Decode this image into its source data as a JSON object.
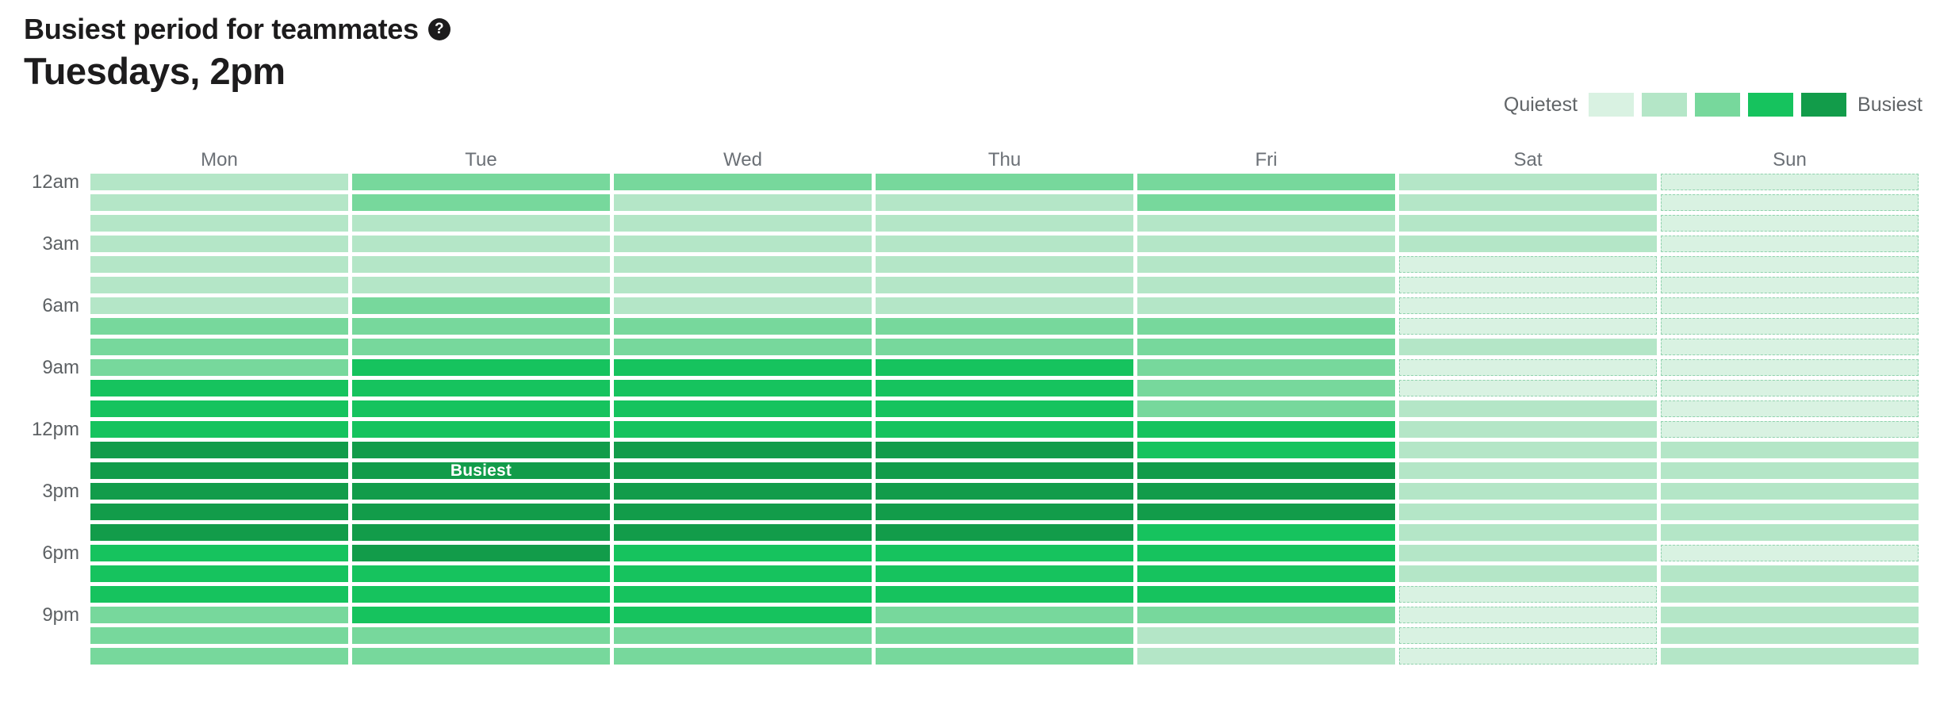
{
  "header": {
    "title": "Busiest period for teammates",
    "help_icon_glyph": "?",
    "subtitle": "Tuesdays, 2pm"
  },
  "legend": {
    "min_label": "Quietest",
    "max_label": "Busiest",
    "level_colors": [
      "#d9f2e2",
      "#b4e6c7",
      "#77d89c",
      "#16c35e",
      "#129c4a"
    ],
    "level1_border": "#54b983"
  },
  "chart_data": {
    "type": "heatmap",
    "title": "Busiest period for teammates",
    "subtitle": "Tuesdays, 2pm",
    "x_categories": [
      "Mon",
      "Tue",
      "Wed",
      "Thu",
      "Fri",
      "Sat",
      "Sun"
    ],
    "y_categories": [
      "12am",
      "1am",
      "2am",
      "3am",
      "4am",
      "5am",
      "6am",
      "7am",
      "8am",
      "9am",
      "10am",
      "11am",
      "12pm",
      "1pm",
      "2pm",
      "3pm",
      "4pm",
      "5pm",
      "6pm",
      "7pm",
      "8pm",
      "9pm",
      "10pm",
      "11pm"
    ],
    "y_axis_shown_ticks": [
      "12am",
      "3am",
      "6am",
      "9am",
      "12pm",
      "3pm",
      "6pm",
      "9pm"
    ],
    "scale_note": "levels 1 (quietest) to 5 (busiest)",
    "values": [
      [
        2,
        3,
        3,
        3,
        3,
        2,
        1
      ],
      [
        2,
        3,
        2,
        2,
        3,
        2,
        1
      ],
      [
        2,
        2,
        2,
        2,
        2,
        2,
        1
      ],
      [
        2,
        2,
        2,
        2,
        2,
        2,
        1
      ],
      [
        2,
        2,
        2,
        2,
        2,
        1,
        1
      ],
      [
        2,
        2,
        2,
        2,
        2,
        1,
        1
      ],
      [
        2,
        3,
        2,
        2,
        2,
        1,
        1
      ],
      [
        3,
        3,
        3,
        3,
        3,
        1,
        1
      ],
      [
        3,
        3,
        3,
        3,
        3,
        2,
        1
      ],
      [
        3,
        4,
        4,
        4,
        3,
        1,
        1
      ],
      [
        4,
        4,
        4,
        4,
        3,
        1,
        1
      ],
      [
        4,
        4,
        4,
        4,
        3,
        2,
        1
      ],
      [
        4,
        4,
        4,
        4,
        4,
        2,
        1
      ],
      [
        5,
        5,
        5,
        5,
        4,
        2,
        2
      ],
      [
        5,
        5,
        5,
        5,
        5,
        2,
        2
      ],
      [
        5,
        5,
        5,
        5,
        5,
        2,
        2
      ],
      [
        5,
        5,
        5,
        5,
        5,
        2,
        2
      ],
      [
        5,
        5,
        5,
        5,
        4,
        2,
        2
      ],
      [
        4,
        5,
        4,
        4,
        4,
        2,
        1
      ],
      [
        4,
        4,
        4,
        4,
        4,
        2,
        2
      ],
      [
        4,
        4,
        4,
        4,
        4,
        1,
        2
      ],
      [
        3,
        4,
        4,
        3,
        3,
        1,
        2
      ],
      [
        3,
        3,
        3,
        3,
        2,
        1,
        2
      ],
      [
        3,
        3,
        3,
        3,
        2,
        1,
        2
      ]
    ],
    "annotation": {
      "label": "Busiest",
      "day": "Tue",
      "hour": "2pm"
    }
  }
}
